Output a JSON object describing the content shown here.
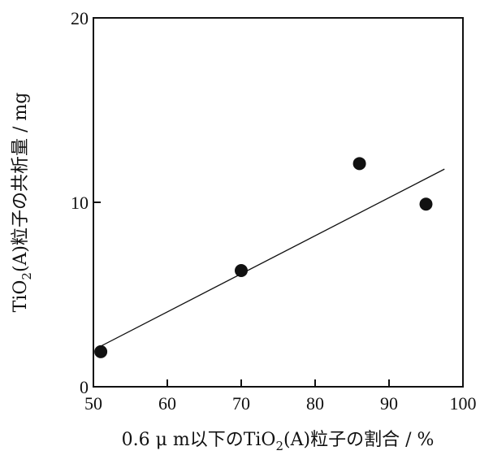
{
  "chart_data": {
    "type": "scatter",
    "title": "",
    "xlabel_parts": {
      "before": "0.6 μ m以下のTiO",
      "sub": "2",
      "after": "(A)粒子の割合 / %"
    },
    "ylabel_parts": {
      "before": "TiO",
      "sub": "2",
      "after": "(A)粒子の共析量 / mg"
    },
    "xlim": [
      50,
      100
    ],
    "ylim": [
      0,
      20
    ],
    "x_ticks": [
      50,
      60,
      70,
      80,
      90,
      100
    ],
    "x_tick_labels": [
      "50",
      "60",
      "70",
      "80",
      "90",
      "100"
    ],
    "y_ticks": [
      0,
      10,
      20
    ],
    "y_tick_labels": [
      "0",
      "10",
      "20"
    ],
    "grid": false,
    "series": [
      {
        "x": [
          51,
          70,
          86,
          95
        ],
        "y": [
          1.9,
          6.3,
          12.1,
          9.9
        ]
      }
    ],
    "trendline": {
      "x": [
        51,
        97.5
      ],
      "y": [
        2.2,
        11.8
      ]
    }
  }
}
